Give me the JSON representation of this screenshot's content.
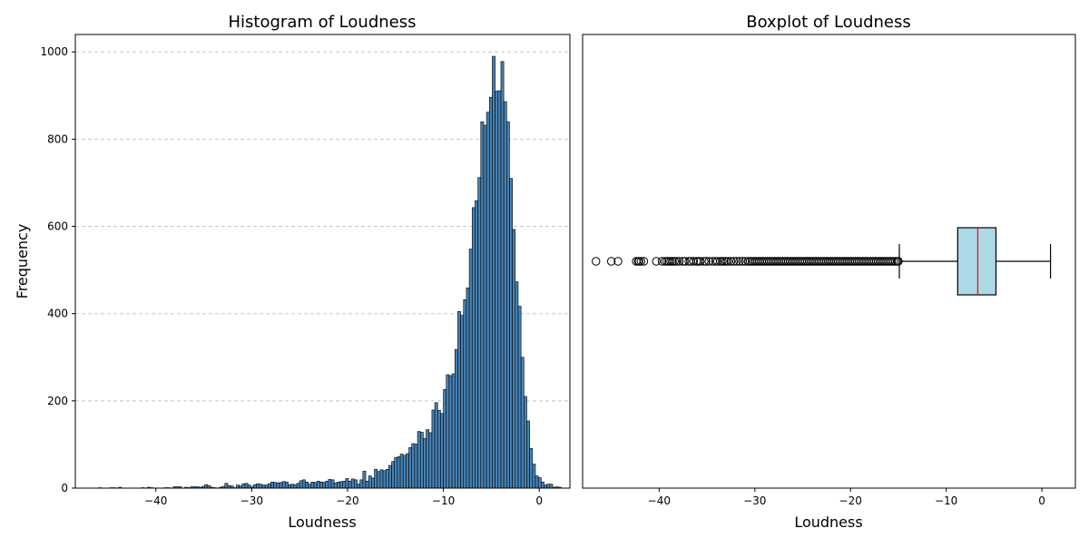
{
  "colors": {
    "bar_fill": "#4682b4",
    "bar_edge": "#000000",
    "box_fill": "#add8e6",
    "median": "#ff0000",
    "grid": "#c8c8c8"
  },
  "chart_data": [
    {
      "type": "bar",
      "title": "Histogram of Loudness",
      "xlabel": "Loudness",
      "ylabel": "Frequency",
      "xlim": [
        -48.4,
        3.2
      ],
      "ylim": [
        0,
        1040
      ],
      "xticks": [
        -40,
        -30,
        -20,
        -10,
        0
      ],
      "xtick_labels": [
        "−40",
        "−30",
        "−20",
        "−10",
        "0"
      ],
      "yticks": [
        0,
        200,
        400,
        600,
        800,
        1000
      ],
      "ytick_labels": [
        "0",
        "200",
        "400",
        "600",
        "800",
        "1000"
      ],
      "grid": "y dashed",
      "bin_start": -46.0,
      "bin_width": 0.3,
      "values": [
        1,
        0,
        0,
        0,
        1,
        1,
        0,
        2,
        0,
        0,
        0,
        0,
        0,
        0,
        0,
        1,
        0,
        2,
        1,
        0,
        0,
        0,
        0,
        1,
        1,
        0,
        3,
        3,
        3,
        0,
        2,
        1,
        3,
        3,
        3,
        2,
        4,
        8,
        6,
        2,
        1,
        0,
        2,
        4,
        11,
        6,
        5,
        1,
        7,
        5,
        10,
        11,
        7,
        3,
        8,
        10,
        9,
        7,
        7,
        10,
        14,
        13,
        12,
        13,
        15,
        14,
        8,
        9,
        8,
        11,
        17,
        19,
        14,
        9,
        14,
        13,
        16,
        14,
        13,
        16,
        20,
        19,
        12,
        14,
        15,
        16,
        22,
        16,
        21,
        19,
        9,
        19,
        39,
        16,
        28,
        23,
        43,
        38,
        42,
        40,
        43,
        52,
        61,
        70,
        72,
        78,
        75,
        79,
        93,
        102,
        101,
        130,
        128,
        114,
        134,
        127,
        179,
        196,
        178,
        171,
        226,
        260,
        258,
        262,
        318,
        405,
        396,
        432,
        459,
        548,
        643,
        659,
        712,
        840,
        832,
        862,
        896,
        990,
        910,
        911,
        978,
        886,
        840,
        710,
        593,
        473,
        417,
        300,
        210,
        154,
        91,
        55,
        28,
        24,
        14,
        7,
        9,
        9,
        2,
        3,
        2
      ]
    },
    {
      "type": "boxplot",
      "title": "Boxplot of Loudness",
      "xlabel": "Loudness",
      "xlim": [
        -48.0,
        3.5
      ],
      "xticks": [
        -40,
        -30,
        -20,
        -10,
        0
      ],
      "xtick_labels": [
        "−40",
        "−30",
        "−20",
        "−10",
        "0"
      ],
      "whisker_low": -14.9,
      "q1": -8.8,
      "median": -6.7,
      "q3": -4.8,
      "whisker_high": 0.9,
      "outliers": [
        -46.6,
        -45.0,
        -44.3,
        -42.4,
        -42.2,
        -42.1,
        -41.9,
        -41.6,
        -40.3,
        -39.7,
        -39.4,
        -39.2,
        -39.0,
        -38.8,
        -38.6,
        -38.4,
        -38.2,
        -37.9,
        -37.5,
        -37.3,
        -36.9,
        -36.7,
        -36.4,
        -36.1,
        -35.9,
        -35.7,
        -35.3,
        -35.1,
        -34.8,
        -34.4,
        -34.1,
        -33.9,
        -33.6,
        -33.4,
        -33.2,
        -33.0,
        -32.8,
        -32.5,
        -32.2,
        -31.9,
        -31.6,
        -31.3,
        -31.0,
        -30.7,
        -30.5,
        -30.3,
        -30.1,
        -29.9,
        -29.7,
        -29.5,
        -29.3,
        -29.1,
        -28.9,
        -28.7,
        -28.5,
        -28.3,
        -28.1,
        -27.9,
        -27.7,
        -27.5,
        -27.3,
        -27.1,
        -26.9,
        -26.7,
        -26.5,
        -26.3,
        -26.1,
        -25.9,
        -25.7,
        -25.5,
        -25.3,
        -25.1,
        -24.9,
        -24.7,
        -24.5,
        -24.3,
        -24.1,
        -23.9,
        -23.7,
        -23.5,
        -23.3,
        -23.1,
        -22.9,
        -22.7,
        -22.5,
        -22.3,
        -22.1,
        -21.9,
        -21.7,
        -21.5,
        -21.3,
        -21.1,
        -20.9,
        -20.7,
        -20.5,
        -20.3,
        -20.1,
        -19.9,
        -19.7,
        -19.5,
        -19.3,
        -19.1,
        -18.9,
        -18.7,
        -18.5,
        -18.3,
        -18.1,
        -17.9,
        -17.7,
        -17.5,
        -17.3,
        -17.1,
        -16.9,
        -16.7,
        -16.5,
        -16.3,
        -16.1,
        -15.9,
        -15.7,
        -15.5,
        -15.3,
        -15.1,
        -15.0
      ]
    }
  ]
}
